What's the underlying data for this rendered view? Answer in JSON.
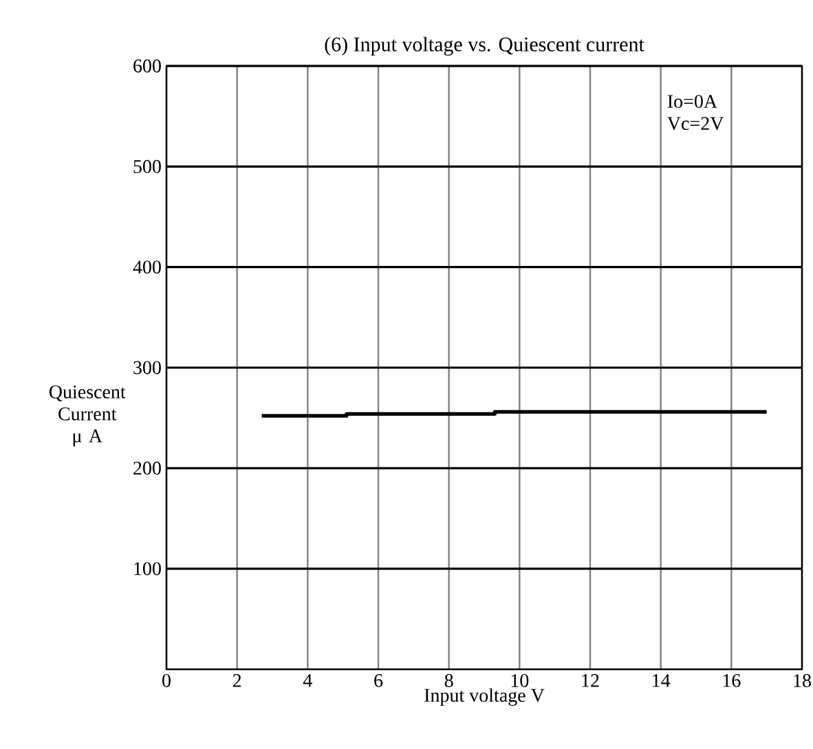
{
  "chart_data": {
    "type": "line",
    "title": "(6)  Input voltage vs. Quiescent current",
    "xlabel": "Input voltage    V",
    "ylabel": "Quiescent Current μ A",
    "annotations": [
      "Io=0A",
      "Vc=2V"
    ],
    "xlim": [
      0,
      18
    ],
    "xticks": [
      0,
      2,
      4,
      6,
      8,
      10,
      12,
      14,
      16,
      18
    ],
    "ylim": [
      0,
      600
    ],
    "yticks": [
      100,
      200,
      300,
      400,
      500,
      600
    ],
    "grid": true,
    "series": [
      {
        "color": "#000000",
        "x": [
          2.7,
          5.1,
          5.1,
          9.3,
          9.3,
          17.0
        ],
        "values": [
          252,
          252,
          254,
          254,
          256,
          256
        ]
      }
    ]
  }
}
